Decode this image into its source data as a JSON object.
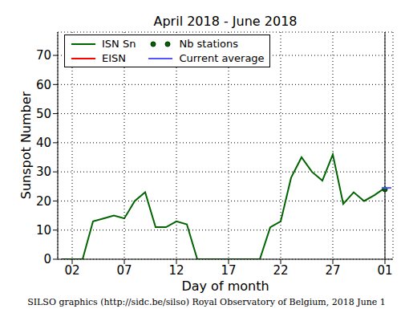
{
  "chart_data": {
    "type": "line",
    "title": "April 2018 - June 2018",
    "x_label": "Day of month",
    "y_label": "Sunspot Number",
    "footer": "SILSO graphics (http://sidc.be/silso) Royal Observatory of Belgium, 2018 June 1",
    "categories": [
      null,
      "02",
      null,
      null,
      null,
      null,
      "07",
      null,
      null,
      null,
      null,
      "12",
      null,
      null,
      null,
      null,
      "17",
      null,
      null,
      null,
      null,
      "22",
      null,
      null,
      null,
      null,
      "27",
      null,
      null,
      null,
      null,
      "01"
    ],
    "series": [
      {
        "name": "ISN Sn",
        "color": "#006400",
        "type": "line",
        "values": [
          0,
          0,
          0,
          13,
          14,
          15,
          14,
          20,
          23,
          11,
          11,
          13,
          12,
          0,
          0,
          0,
          0,
          0,
          0,
          0,
          11,
          13,
          28,
          35,
          30,
          27,
          36,
          19,
          23,
          20,
          22,
          24.5
        ]
      },
      {
        "name": "EISN",
        "color": "#ff0000",
        "type": "line",
        "values": [
          null,
          null,
          null,
          null,
          null,
          null,
          null,
          null,
          null,
          null,
          null,
          null,
          null,
          null,
          null,
          null,
          null,
          null,
          null,
          null,
          null,
          null,
          null,
          null,
          null,
          null,
          null,
          null,
          null,
          null,
          null,
          null
        ]
      },
      {
        "name": "Nb stations",
        "color": "#006400",
        "type": "scatter",
        "marker": "circle",
        "values": [
          null,
          null,
          null,
          null,
          null,
          null,
          null,
          null,
          null,
          null,
          null,
          null,
          null,
          null,
          null,
          null,
          null,
          null,
          null,
          null,
          null,
          null,
          null,
          null,
          null,
          null,
          null,
          null,
          null,
          null,
          null,
          24
        ]
      },
      {
        "name": "Current average",
        "color": "#5555ff",
        "type": "scatter",
        "marker": "dash",
        "values": [
          null,
          null,
          null,
          null,
          null,
          null,
          null,
          null,
          null,
          null,
          null,
          null,
          null,
          null,
          null,
          null,
          null,
          null,
          null,
          null,
          null,
          null,
          null,
          null,
          null,
          null,
          null,
          null,
          null,
          null,
          null,
          24.5
        ]
      }
    ],
    "ylim": [
      0,
      78
    ],
    "yticks": [
      0,
      10,
      20,
      30,
      40,
      50,
      60,
      70
    ],
    "grid": true,
    "legend": "upper left"
  }
}
